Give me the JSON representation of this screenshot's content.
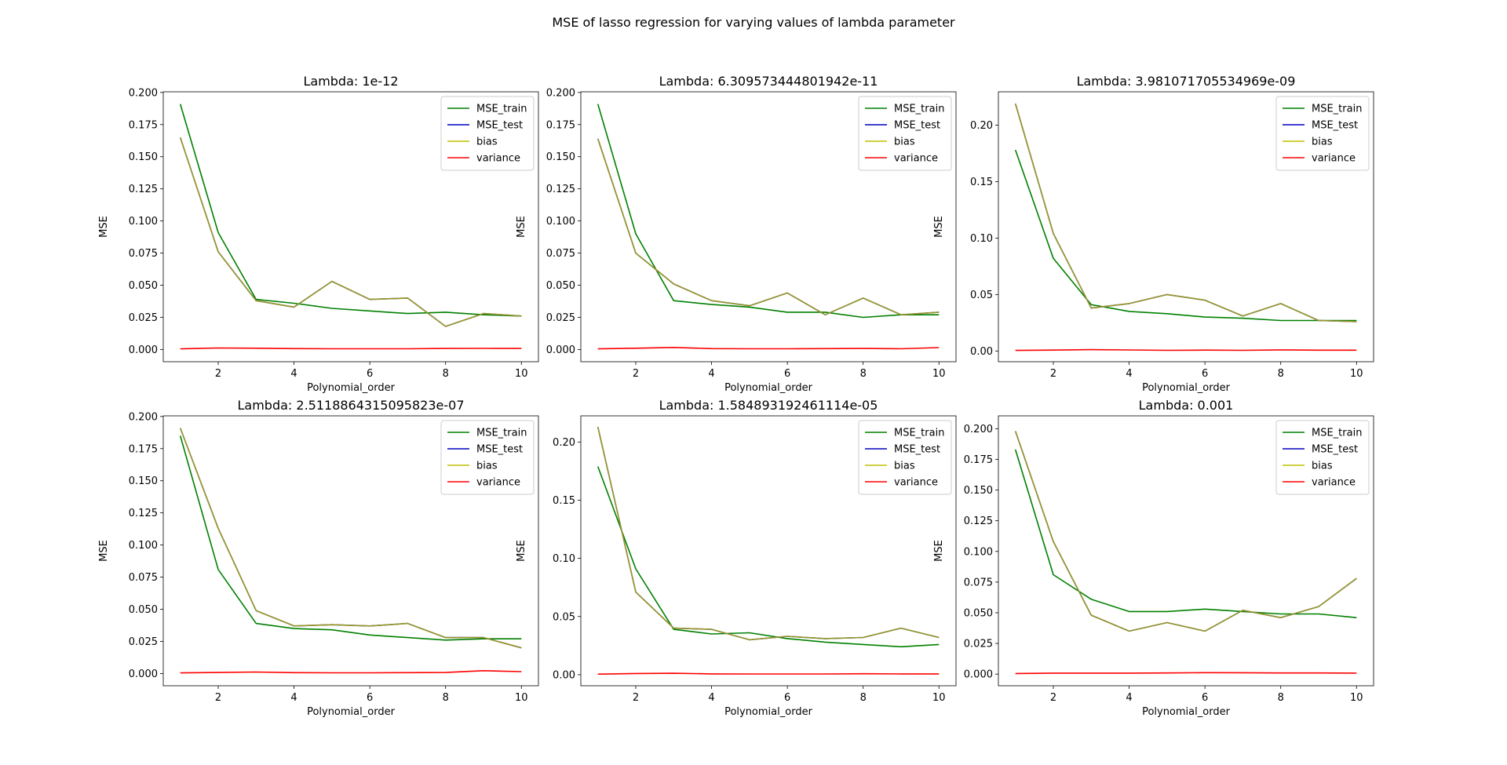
{
  "figure": {
    "suptitle": "MSE of lasso regression for varying values of lambda parameter"
  },
  "colors": {
    "MSE_train": "#008000",
    "MSE_test": "#0000bf",
    "bias": "#bfbf00",
    "variance": "#ff0000"
  },
  "chart_data": [
    {
      "type": "line",
      "title": "Lambda: 1e-12",
      "xlabel": "Polynomial_order",
      "ylabel": "MSE",
      "x": [
        1,
        2,
        3,
        4,
        5,
        6,
        7,
        8,
        9,
        10
      ],
      "xticks": [
        2,
        4,
        6,
        8,
        10
      ],
      "xlim": [
        0.55,
        10.45
      ],
      "ylim": [
        -0.0095,
        0.2005
      ],
      "yticks": [
        0.0,
        0.025,
        0.05,
        0.075,
        0.1,
        0.125,
        0.15,
        0.175,
        0.2
      ],
      "ytick_labels": [
        "0.000",
        "0.025",
        "0.050",
        "0.075",
        "0.100",
        "0.125",
        "0.150",
        "0.175",
        "0.200"
      ],
      "legend": "top-right",
      "series": [
        {
          "name": "MSE_train",
          "values": [
            0.191,
            0.091,
            0.039,
            0.036,
            0.032,
            0.03,
            0.028,
            0.029,
            0.027,
            0.026
          ]
        },
        {
          "name": "MSE_test",
          "values": [
            0.165,
            0.076,
            0.038,
            0.033,
            0.053,
            0.039,
            0.04,
            0.018,
            0.028,
            0.026
          ]
        },
        {
          "name": "bias",
          "values": [
            0.165,
            0.076,
            0.038,
            0.033,
            0.053,
            0.039,
            0.04,
            0.018,
            0.028,
            0.026
          ]
        },
        {
          "name": "variance",
          "values": [
            0.0005,
            0.0012,
            0.001,
            0.0007,
            0.0006,
            0.0006,
            0.0006,
            0.0008,
            0.0009,
            0.0008
          ]
        }
      ]
    },
    {
      "type": "line",
      "title": "Lambda: 6.309573444801942e-11",
      "xlabel": "Polynomial_order",
      "ylabel": "MSE",
      "x": [
        1,
        2,
        3,
        4,
        5,
        6,
        7,
        8,
        9,
        10
      ],
      "xticks": [
        2,
        4,
        6,
        8,
        10
      ],
      "xlim": [
        0.55,
        10.45
      ],
      "ylim": [
        -0.0095,
        0.2005
      ],
      "yticks": [
        0.0,
        0.025,
        0.05,
        0.075,
        0.1,
        0.125,
        0.15,
        0.175,
        0.2
      ],
      "ytick_labels": [
        "0.000",
        "0.025",
        "0.050",
        "0.075",
        "0.100",
        "0.125",
        "0.150",
        "0.175",
        "0.200"
      ],
      "legend": "top-right",
      "series": [
        {
          "name": "MSE_train",
          "values": [
            0.191,
            0.09,
            0.038,
            0.035,
            0.033,
            0.029,
            0.029,
            0.025,
            0.027,
            0.027
          ]
        },
        {
          "name": "MSE_test",
          "values": [
            0.164,
            0.075,
            0.051,
            0.038,
            0.034,
            0.044,
            0.027,
            0.04,
            0.027,
            0.029
          ]
        },
        {
          "name": "bias",
          "values": [
            0.164,
            0.075,
            0.051,
            0.038,
            0.034,
            0.044,
            0.027,
            0.04,
            0.027,
            0.029
          ]
        },
        {
          "name": "variance",
          "values": [
            0.0005,
            0.001,
            0.0016,
            0.0007,
            0.0006,
            0.0006,
            0.0007,
            0.0008,
            0.0006,
            0.0015
          ]
        }
      ]
    },
    {
      "type": "line",
      "title": "Lambda: 3.981071705534969e-09",
      "xlabel": "Polynomial_order",
      "ylabel": "MSE",
      "x": [
        1,
        2,
        3,
        4,
        5,
        6,
        7,
        8,
        9,
        10
      ],
      "xticks": [
        2,
        4,
        6,
        8,
        10
      ],
      "xlim": [
        0.55,
        10.45
      ],
      "ylim": [
        -0.0095,
        0.2295
      ],
      "yticks": [
        0.0,
        0.05,
        0.1,
        0.15,
        0.2
      ],
      "ytick_labels": [
        "0.00",
        "0.05",
        "0.10",
        "0.15",
        "0.20"
      ],
      "legend": "top-right",
      "series": [
        {
          "name": "MSE_train",
          "values": [
            0.178,
            0.082,
            0.041,
            0.035,
            0.033,
            0.03,
            0.029,
            0.027,
            0.027,
            0.027
          ]
        },
        {
          "name": "MSE_test",
          "values": [
            0.219,
            0.104,
            0.038,
            0.042,
            0.05,
            0.045,
            0.031,
            0.042,
            0.027,
            0.026
          ]
        },
        {
          "name": "bias",
          "values": [
            0.219,
            0.104,
            0.038,
            0.042,
            0.05,
            0.045,
            0.031,
            0.042,
            0.027,
            0.026
          ]
        },
        {
          "name": "variance",
          "values": [
            0.0005,
            0.0008,
            0.0012,
            0.0009,
            0.0006,
            0.0008,
            0.0006,
            0.001,
            0.0007,
            0.0007
          ]
        }
      ]
    },
    {
      "type": "line",
      "title": "Lambda: 2.5118864315095823e-07",
      "xlabel": "Polynomial_order",
      "ylabel": "MSE",
      "x": [
        1,
        2,
        3,
        4,
        5,
        6,
        7,
        8,
        9,
        10
      ],
      "xticks": [
        2,
        4,
        6,
        8,
        10
      ],
      "xlim": [
        0.55,
        10.45
      ],
      "ylim": [
        -0.0095,
        0.2005
      ],
      "yticks": [
        0.0,
        0.025,
        0.05,
        0.075,
        0.1,
        0.125,
        0.15,
        0.175,
        0.2
      ],
      "ytick_labels": [
        "0.000",
        "0.025",
        "0.050",
        "0.075",
        "0.100",
        "0.125",
        "0.150",
        "0.175",
        "0.200"
      ],
      "legend": "top-right",
      "series": [
        {
          "name": "MSE_train",
          "values": [
            0.185,
            0.081,
            0.039,
            0.035,
            0.034,
            0.03,
            0.028,
            0.026,
            0.027,
            0.027
          ]
        },
        {
          "name": "MSE_test",
          "values": [
            0.191,
            0.113,
            0.049,
            0.037,
            0.038,
            0.037,
            0.039,
            0.028,
            0.028,
            0.02
          ]
        },
        {
          "name": "bias",
          "values": [
            0.191,
            0.113,
            0.049,
            0.037,
            0.038,
            0.037,
            0.039,
            0.028,
            0.028,
            0.02
          ]
        },
        {
          "name": "variance",
          "values": [
            0.0005,
            0.0008,
            0.0012,
            0.0007,
            0.0006,
            0.0006,
            0.0007,
            0.0008,
            0.0022,
            0.0015
          ]
        }
      ]
    },
    {
      "type": "line",
      "title": "Lambda: 1.584893192461114e-05",
      "xlabel": "Polynomial_order",
      "ylabel": "MSE",
      "x": [
        1,
        2,
        3,
        4,
        5,
        6,
        7,
        8,
        9,
        10
      ],
      "xticks": [
        2,
        4,
        6,
        8,
        10
      ],
      "xlim": [
        0.55,
        10.45
      ],
      "ylim": [
        -0.0095,
        0.2225
      ],
      "yticks": [
        0.0,
        0.05,
        0.1,
        0.15,
        0.2
      ],
      "ytick_labels": [
        "0.00",
        "0.05",
        "0.10",
        "0.15",
        "0.20"
      ],
      "legend": "top-right",
      "series": [
        {
          "name": "MSE_train",
          "values": [
            0.179,
            0.091,
            0.039,
            0.035,
            0.036,
            0.031,
            0.028,
            0.026,
            0.024,
            0.026
          ]
        },
        {
          "name": "MSE_test",
          "values": [
            0.213,
            0.071,
            0.04,
            0.039,
            0.03,
            0.033,
            0.031,
            0.032,
            0.04,
            0.032
          ]
        },
        {
          "name": "bias",
          "values": [
            0.213,
            0.071,
            0.04,
            0.039,
            0.03,
            0.033,
            0.031,
            0.032,
            0.04,
            0.032
          ]
        },
        {
          "name": "variance",
          "values": [
            0.0005,
            0.001,
            0.0012,
            0.0007,
            0.0006,
            0.0006,
            0.0006,
            0.0008,
            0.0007,
            0.0007
          ]
        }
      ]
    },
    {
      "type": "line",
      "title": "Lambda: 0.001",
      "xlabel": "Polynomial_order",
      "ylabel": "MSE",
      "x": [
        1,
        2,
        3,
        4,
        5,
        6,
        7,
        8,
        9,
        10
      ],
      "xticks": [
        2,
        4,
        6,
        8,
        10
      ],
      "xlim": [
        0.55,
        10.45
      ],
      "ylim": [
        -0.0095,
        0.2105
      ],
      "yticks": [
        0.0,
        0.025,
        0.05,
        0.075,
        0.1,
        0.125,
        0.15,
        0.175,
        0.2
      ],
      "ytick_labels": [
        "0.000",
        "0.025",
        "0.050",
        "0.075",
        "0.100",
        "0.125",
        "0.150",
        "0.175",
        "0.200"
      ],
      "legend": "top-right",
      "series": [
        {
          "name": "MSE_train",
          "values": [
            0.183,
            0.081,
            0.061,
            0.051,
            0.051,
            0.053,
            0.051,
            0.049,
            0.049,
            0.046
          ]
        },
        {
          "name": "MSE_test",
          "values": [
            0.198,
            0.108,
            0.048,
            0.035,
            0.042,
            0.035,
            0.052,
            0.046,
            0.055,
            0.078
          ]
        },
        {
          "name": "bias",
          "values": [
            0.198,
            0.108,
            0.048,
            0.035,
            0.042,
            0.035,
            0.052,
            0.046,
            0.055,
            0.078
          ]
        },
        {
          "name": "variance",
          "values": [
            0.0005,
            0.0008,
            0.0008,
            0.0008,
            0.0009,
            0.0012,
            0.0011,
            0.0009,
            0.0009,
            0.0008
          ]
        }
      ]
    }
  ]
}
